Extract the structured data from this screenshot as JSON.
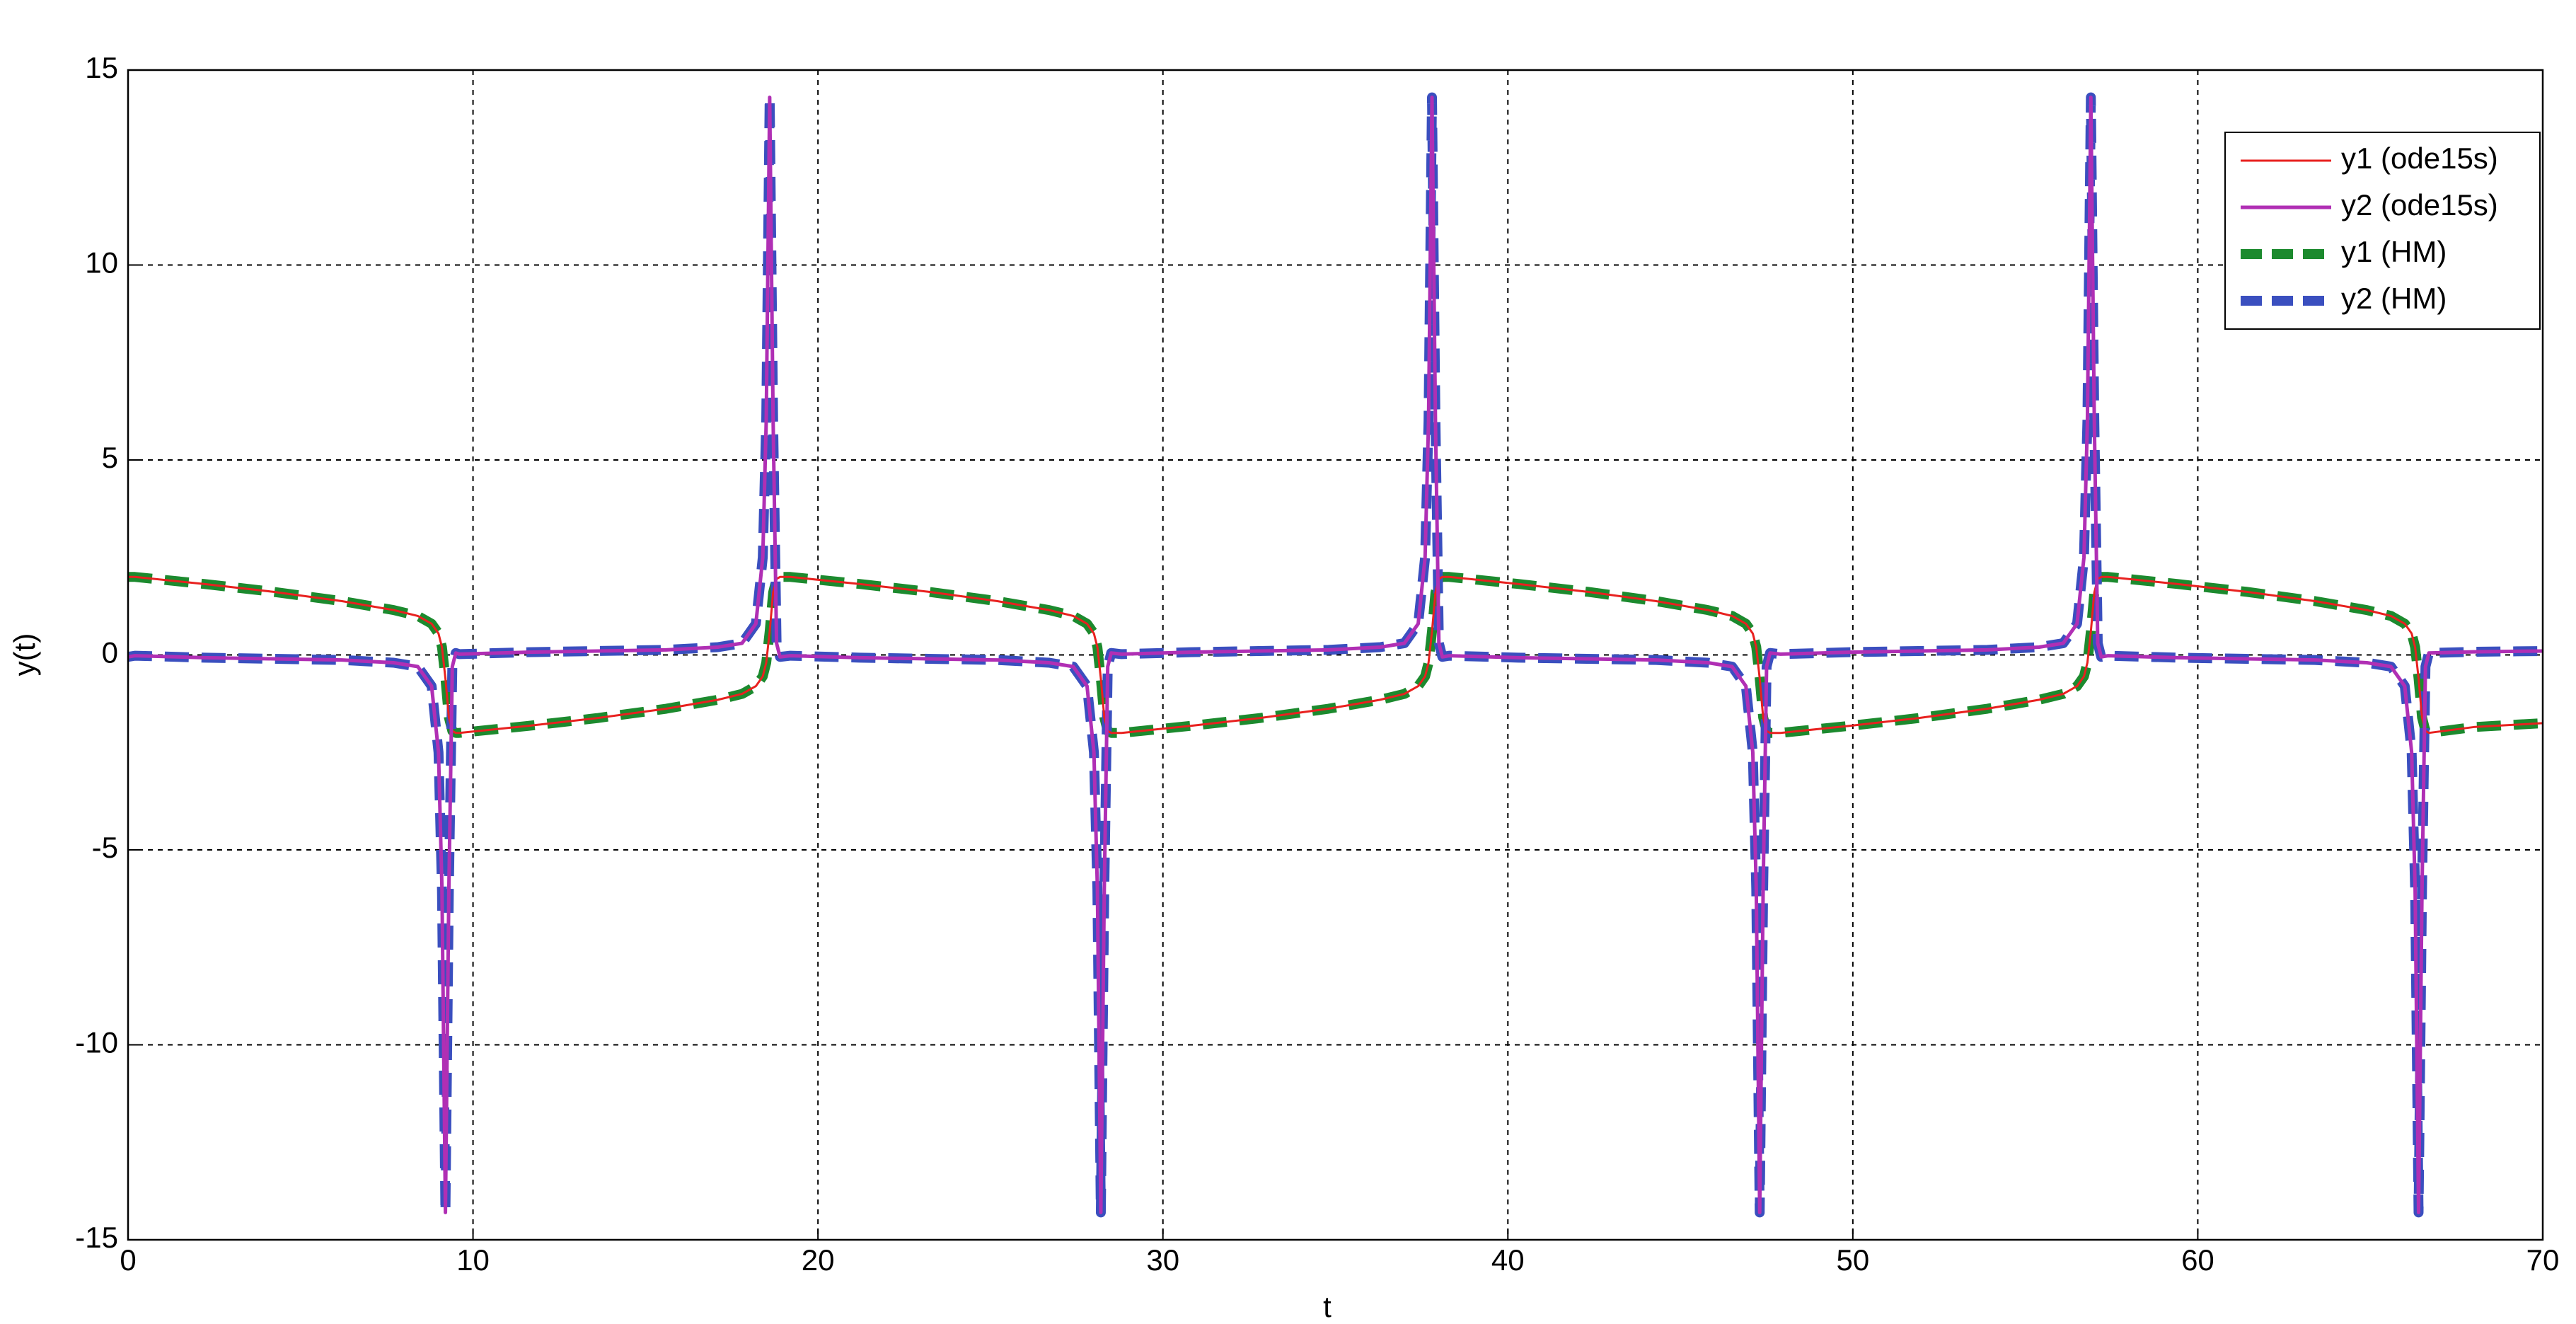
{
  "chart_data": {
    "type": "line",
    "xlabel": "t",
    "ylabel": "y(t)",
    "xlim": [
      0,
      70
    ],
    "xticks": [
      0,
      10,
      20,
      30,
      40,
      50,
      60,
      70
    ],
    "ylim": [
      -15,
      15
    ],
    "yticks": [
      -15,
      -10,
      -5,
      0,
      5,
      10,
      15
    ],
    "grid": true,
    "legend_position": "northeast",
    "x": [
      0,
      0.2,
      2.2,
      4.2,
      6.2,
      7.7,
      8.4,
      8.8,
      9.0,
      9.1,
      9.2,
      9.3,
      9.4,
      9.5,
      9.6,
      11.6,
      13.6,
      15.6,
      17.1,
      17.8,
      18.2,
      18.4,
      18.5,
      18.6,
      18.7,
      18.8,
      18.9,
      19.2,
      21.2,
      23.2,
      25.2,
      26.7,
      27.4,
      27.8,
      28.0,
      28.1,
      28.2,
      28.3,
      28.4,
      28.5,
      28.8,
      30.8,
      32.8,
      34.8,
      36.3,
      37.0,
      37.4,
      37.6,
      37.7,
      37.8,
      37.9,
      38.0,
      38.1,
      38.3,
      40.3,
      42.3,
      44.3,
      45.8,
      46.5,
      46.9,
      47.1,
      47.2,
      47.3,
      47.4,
      47.5,
      47.6,
      47.9,
      49.9,
      51.9,
      53.9,
      55.4,
      56.1,
      56.5,
      56.7,
      56.8,
      56.9,
      57.0,
      57.1,
      57.2,
      57.4,
      59.4,
      61.4,
      63.4,
      64.9,
      65.6,
      66.0,
      66.2,
      66.3,
      66.4,
      66.5,
      66.6,
      66.7,
      68,
      70
    ],
    "series": [
      {
        "name": "y1 (ode15s)",
        "color": "#e8211f",
        "style": "thin",
        "values": [
          2.0,
          2.0,
          1.82,
          1.62,
          1.38,
          1.15,
          1.0,
          0.8,
          0.55,
          0.2,
          -0.6,
          -1.6,
          -1.95,
          -2.0,
          -2.0,
          -1.82,
          -1.62,
          -1.38,
          -1.15,
          -1.0,
          -0.8,
          -0.55,
          -0.2,
          0.6,
          1.6,
          1.95,
          2.0,
          2.0,
          1.82,
          1.62,
          1.38,
          1.15,
          1.0,
          0.8,
          0.55,
          0.2,
          -0.6,
          -1.6,
          -1.95,
          -2.0,
          -2.0,
          -1.82,
          -1.62,
          -1.38,
          -1.15,
          -1.0,
          -0.8,
          -0.55,
          -0.2,
          0.6,
          1.6,
          1.95,
          2.0,
          2.0,
          1.82,
          1.62,
          1.38,
          1.15,
          1.0,
          0.8,
          0.55,
          0.2,
          -0.6,
          -1.6,
          -1.95,
          -2.0,
          -2.0,
          -1.82,
          -1.62,
          -1.38,
          -1.15,
          -1.0,
          -0.8,
          -0.55,
          -0.2,
          0.6,
          1.6,
          1.95,
          2.0,
          2.0,
          1.82,
          1.62,
          1.38,
          1.15,
          1.0,
          0.8,
          0.55,
          0.2,
          -0.6,
          -1.6,
          -1.95,
          -2.0,
          -1.85,
          -1.75
        ]
      },
      {
        "name": "y2 (ode15s)",
        "color": "#b02fb4",
        "style": "medium",
        "values": [
          -0.05,
          -0.02,
          -0.07,
          -0.1,
          -0.13,
          -0.2,
          -0.3,
          -0.8,
          -2.5,
          -6,
          -14.3,
          -6,
          -0.3,
          0.05,
          0.02,
          0.07,
          0.1,
          0.13,
          0.2,
          0.3,
          0.8,
          2.5,
          6,
          14.3,
          6,
          0.3,
          -0.05,
          -0.02,
          -0.07,
          -0.1,
          -0.13,
          -0.2,
          -0.3,
          -0.8,
          -2.5,
          -6,
          -14.3,
          -6,
          -0.3,
          0.05,
          0.02,
          0.07,
          0.1,
          0.13,
          0.2,
          0.3,
          0.8,
          2.5,
          6,
          14.3,
          6,
          0.3,
          -0.05,
          -0.02,
          -0.07,
          -0.1,
          -0.13,
          -0.2,
          -0.3,
          -0.8,
          -2.5,
          -6,
          -14.3,
          -6,
          -0.3,
          0.05,
          0.02,
          0.07,
          0.1,
          0.13,
          0.2,
          0.3,
          0.8,
          2.5,
          6,
          14.3,
          6,
          0.3,
          -0.05,
          -0.02,
          -0.07,
          -0.1,
          -0.13,
          -0.2,
          -0.3,
          -0.8,
          -2.5,
          -6,
          -14.3,
          -6,
          -0.3,
          0.05,
          0.08,
          0.1
        ]
      },
      {
        "name": "y1 (HM)",
        "color": "#1c8a2e",
        "style": "dashed",
        "values": [
          2.0,
          2.0,
          1.82,
          1.62,
          1.38,
          1.15,
          1.0,
          0.8,
          0.55,
          0.2,
          -0.6,
          -1.6,
          -1.95,
          -2.0,
          -2.0,
          -1.82,
          -1.62,
          -1.38,
          -1.15,
          -1.0,
          -0.8,
          -0.55,
          -0.2,
          0.6,
          1.6,
          1.95,
          2.0,
          2.0,
          1.82,
          1.62,
          1.38,
          1.15,
          1.0,
          0.8,
          0.55,
          0.2,
          -0.6,
          -1.6,
          -1.95,
          -2.0,
          -2.0,
          -1.82,
          -1.62,
          -1.38,
          -1.15,
          -1.0,
          -0.8,
          -0.55,
          -0.2,
          0.6,
          1.6,
          1.95,
          2.0,
          2.0,
          1.82,
          1.62,
          1.38,
          1.15,
          1.0,
          0.8,
          0.55,
          0.2,
          -0.6,
          -1.6,
          -1.95,
          -2.0,
          -2.0,
          -1.82,
          -1.62,
          -1.38,
          -1.15,
          -1.0,
          -0.8,
          -0.55,
          -0.2,
          0.6,
          1.6,
          1.95,
          2.0,
          2.0,
          1.82,
          1.62,
          1.38,
          1.15,
          1.0,
          0.8,
          0.55,
          0.2,
          -0.6,
          -1.6,
          -1.95,
          -2.0,
          -1.85,
          -1.75
        ]
      },
      {
        "name": "y2 (HM)",
        "color": "#3a4fbf",
        "style": "dashed",
        "values": [
          -0.05,
          -0.02,
          -0.07,
          -0.1,
          -0.13,
          -0.2,
          -0.3,
          -0.8,
          -2.5,
          -6,
          -14.3,
          -6,
          -0.3,
          0.05,
          0.02,
          0.07,
          0.1,
          0.13,
          0.2,
          0.3,
          0.8,
          2.5,
          6,
          14.3,
          6,
          0.3,
          -0.05,
          -0.02,
          -0.07,
          -0.1,
          -0.13,
          -0.2,
          -0.3,
          -0.8,
          -2.5,
          -6,
          -14.3,
          -6,
          -0.3,
          0.05,
          0.02,
          0.07,
          0.1,
          0.13,
          0.2,
          0.3,
          0.8,
          2.5,
          6,
          14.3,
          6,
          0.3,
          -0.05,
          -0.02,
          -0.07,
          -0.1,
          -0.13,
          -0.2,
          -0.3,
          -0.8,
          -2.5,
          -6,
          -14.3,
          -6,
          -0.3,
          0.05,
          0.02,
          0.07,
          0.1,
          0.13,
          0.2,
          0.3,
          0.8,
          2.5,
          6,
          14.3,
          6,
          0.3,
          -0.05,
          -0.02,
          -0.07,
          -0.1,
          -0.13,
          -0.2,
          -0.3,
          -0.8,
          -2.5,
          -6,
          -14.3,
          -6,
          -0.3,
          0.05,
          0.08,
          0.1
        ]
      }
    ]
  }
}
